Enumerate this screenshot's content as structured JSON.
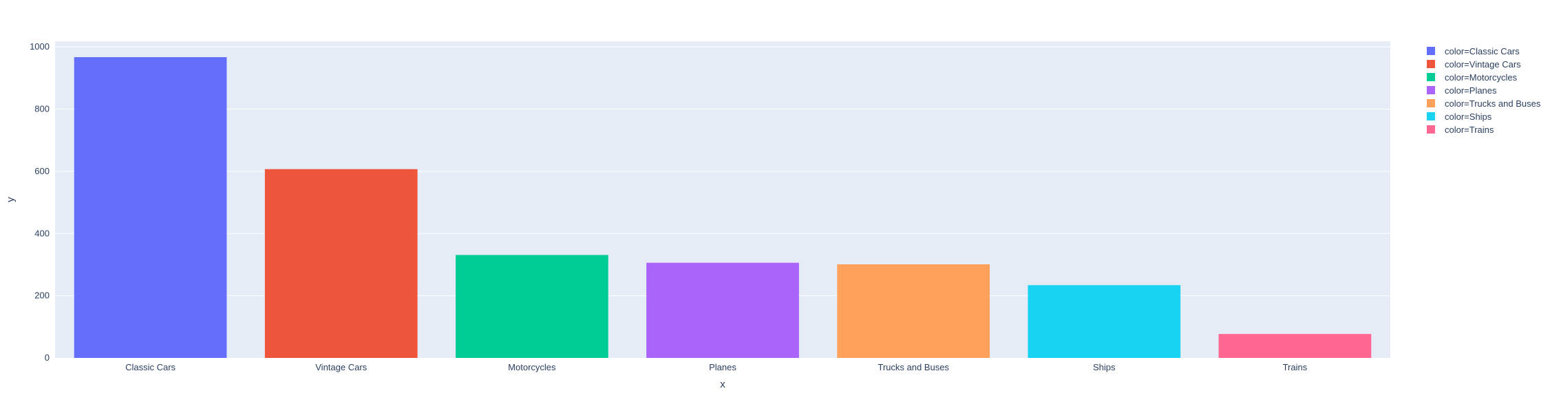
{
  "chart_data": {
    "type": "bar",
    "categories": [
      "Classic Cars",
      "Vintage Cars",
      "Motorcycles",
      "Planes",
      "Trucks and Buses",
      "Ships",
      "Trains"
    ],
    "values": [
      967,
      607,
      331,
      306,
      301,
      234,
      77
    ],
    "colors": [
      "#636efa",
      "#EF553B",
      "#00cc96",
      "#ab63fa",
      "#FFA15A",
      "#19d3f3",
      "#FF6692"
    ],
    "xlabel": "x",
    "ylabel": "y",
    "ylim": [
      0,
      1018
    ],
    "yticks": [
      0,
      200,
      400,
      600,
      800,
      1000
    ],
    "grid": true,
    "legend_position": "top-right",
    "legend": [
      {
        "label": "color=Classic Cars",
        "color": "#636efa"
      },
      {
        "label": "color=Vintage Cars",
        "color": "#EF553B"
      },
      {
        "label": "color=Motorcycles",
        "color": "#00cc96"
      },
      {
        "label": "color=Planes",
        "color": "#ab63fa"
      },
      {
        "label": "color=Trucks and Buses",
        "color": "#FFA15A"
      },
      {
        "label": "color=Ships",
        "color": "#19d3f3"
      },
      {
        "label": "color=Trains",
        "color": "#FF6692"
      }
    ],
    "plot_background": "#E5ECF6"
  }
}
